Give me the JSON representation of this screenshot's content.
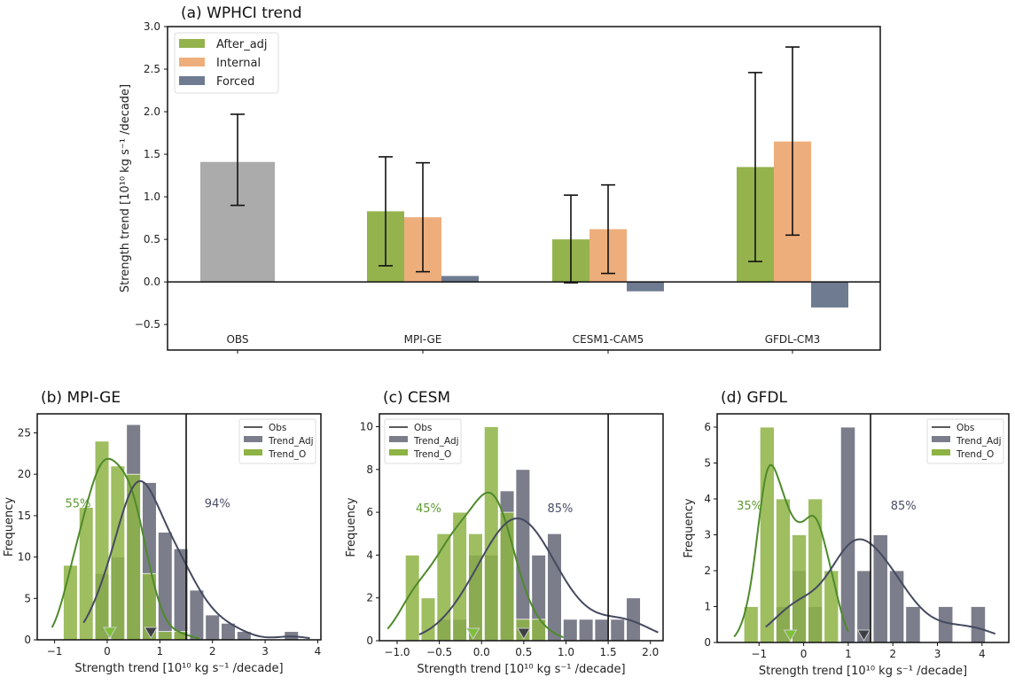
{
  "chart_data": [
    {
      "type": "bar",
      "title": "(a) WPHCI trend",
      "ylabel": "Strength trend [10¹⁰ kg s⁻¹ /decade]",
      "ylim": [
        -0.8,
        3.0
      ],
      "yticks": [
        "−0.5",
        "0.0",
        "0.5",
        "1.0",
        "1.5",
        "2.0",
        "2.5",
        "3.0"
      ],
      "ytick_values": [
        -0.5,
        0,
        0.5,
        1,
        1.5,
        2,
        2.5,
        3
      ],
      "categories": [
        "OBS",
        "MPI-GE",
        "CESM1-CAM5",
        "GFDL-CM3"
      ],
      "obs": {
        "value": 1.41,
        "err_low": 0.9,
        "err_high": 1.97,
        "color": "#aaabaa"
      },
      "legend_position": "top-left",
      "series": [
        {
          "name": "After_adj",
          "color": "#94b34d",
          "values": [
            null,
            0.83,
            0.5,
            1.35
          ],
          "err_low": [
            null,
            0.19,
            -0.01,
            0.24
          ],
          "err_high": [
            null,
            1.47,
            1.02,
            2.46
          ]
        },
        {
          "name": "Internal",
          "color": "#eeae7c",
          "values": [
            null,
            0.76,
            0.62,
            1.65
          ],
          "err_low": [
            null,
            0.12,
            0.1,
            0.55
          ],
          "err_high": [
            null,
            1.4,
            1.14,
            2.76
          ]
        },
        {
          "name": "Forced",
          "color": "#6e7b91",
          "values": [
            null,
            0.07,
            -0.11,
            -0.3
          ]
        }
      ]
    },
    {
      "type": "bar",
      "title": "(b) MPI-GE",
      "xlabel": "Strength trend [10¹⁰ kg s⁻¹ /decade]",
      "ylabel": "Frequency",
      "xlim": [
        -1.33,
        4.06
      ],
      "ylim": [
        0,
        27.3
      ],
      "xticks": [
        "−1",
        "0",
        "1",
        "2",
        "3",
        "4"
      ],
      "xtick_values": [
        -1,
        0,
        1,
        2,
        3,
        4
      ],
      "yticks": [
        "0",
        "5",
        "10",
        "15",
        "20",
        "25"
      ],
      "ytick_values": [
        0,
        5,
        10,
        15,
        20,
        25
      ],
      "legend": [
        "Obs",
        "Trend_Adj",
        "Trend_O"
      ],
      "legend_position": "top-right",
      "obs": 1.5,
      "trend_adj": {
        "bin_start": -0.25,
        "bin_width": 0.3,
        "counts": [
          8,
          10,
          26,
          19,
          13,
          11,
          6,
          3,
          2,
          1,
          0,
          0,
          1
        ],
        "mean": 0.83
      },
      "trend_o": {
        "bin_start": -0.85,
        "bin_width": 0.3,
        "counts": [
          9,
          16,
          24,
          21,
          20,
          8,
          1,
          1
        ],
        "mean": 0.05
      },
      "pct_o": "55%",
      "pct_adj": "94%"
    },
    {
      "type": "bar",
      "title": "(c) CESM",
      "xlabel": "Strength trend [10¹⁰ kg s⁻¹ /decade]",
      "ylabel": "Frequency",
      "xlim": [
        -1.21,
        2.15
      ],
      "ylim": [
        0,
        10.6
      ],
      "xticks": [
        "−1.0",
        "−0.5",
        "0.0",
        "0.5",
        "1.0",
        "1.5",
        "2.0"
      ],
      "xtick_values": [
        -1,
        -0.5,
        0,
        0.5,
        1,
        1.5,
        2
      ],
      "yticks": [
        "0",
        "2",
        "4",
        "6",
        "8",
        "10"
      ],
      "ytick_values": [
        0,
        2,
        4,
        6,
        8,
        10
      ],
      "legend": [
        "Obs",
        "Trend_Adj",
        "Trend_O"
      ],
      "legend_position": "top-left",
      "obs": 1.5,
      "trend_adj": {
        "bin_start": -0.539,
        "bin_width": 0.187,
        "counts": [
          1,
          1,
          4,
          4,
          7,
          8,
          4,
          5,
          1,
          1,
          1,
          1,
          2
        ],
        "mean": 0.5
      },
      "trend_o": {
        "bin_start": -0.913,
        "bin_width": 0.187,
        "counts": [
          4,
          2,
          5,
          6,
          5,
          10,
          6,
          1,
          1
        ],
        "mean": -0.1
      },
      "pct_o": "45%",
      "pct_adj": "85%"
    },
    {
      "type": "bar",
      "title": "(d) GFDL",
      "xlabel": "Strength trend [10¹⁰ kg s⁻¹ /decade]",
      "ylabel": "Frequency",
      "xlim": [
        -1.94,
        4.6
      ],
      "ylim": [
        0,
        6.37
      ],
      "xticks": [
        "−1",
        "0",
        "1",
        "2",
        "3",
        "4"
      ],
      "xtick_values": [
        -1,
        0,
        1,
        2,
        3,
        4
      ],
      "yticks": [
        "0",
        "1",
        "2",
        "3",
        "4",
        "5",
        "6"
      ],
      "ytick_values": [
        0,
        1,
        2,
        3,
        4,
        5,
        6
      ],
      "legend": [
        "Obs",
        "Trend_Adj",
        "Trend_O"
      ],
      "legend_position": "top-right",
      "obs": 1.5,
      "trend_adj": {
        "bin_start": -0.65,
        "bin_width": 0.365,
        "counts": [
          1,
          2,
          1,
          0,
          6,
          2,
          3,
          2,
          1,
          0,
          1,
          0,
          1
        ],
        "mean": 1.35
      },
      "trend_o": {
        "bin_start": -1.36,
        "bin_width": 0.36,
        "counts": [
          1,
          6,
          4,
          3,
          4,
          2
        ],
        "mean": -0.3
      },
      "pct_o": "35%",
      "pct_adj": "85%"
    }
  ],
  "colors": {
    "trend_adj": "#7b7d8a",
    "trend_o": "#8db344",
    "kde_o": "#4f8a2a",
    "kde_adj": "#454a60",
    "pct_o": "#5d9a30",
    "pct_adj": "#4a4e66"
  }
}
